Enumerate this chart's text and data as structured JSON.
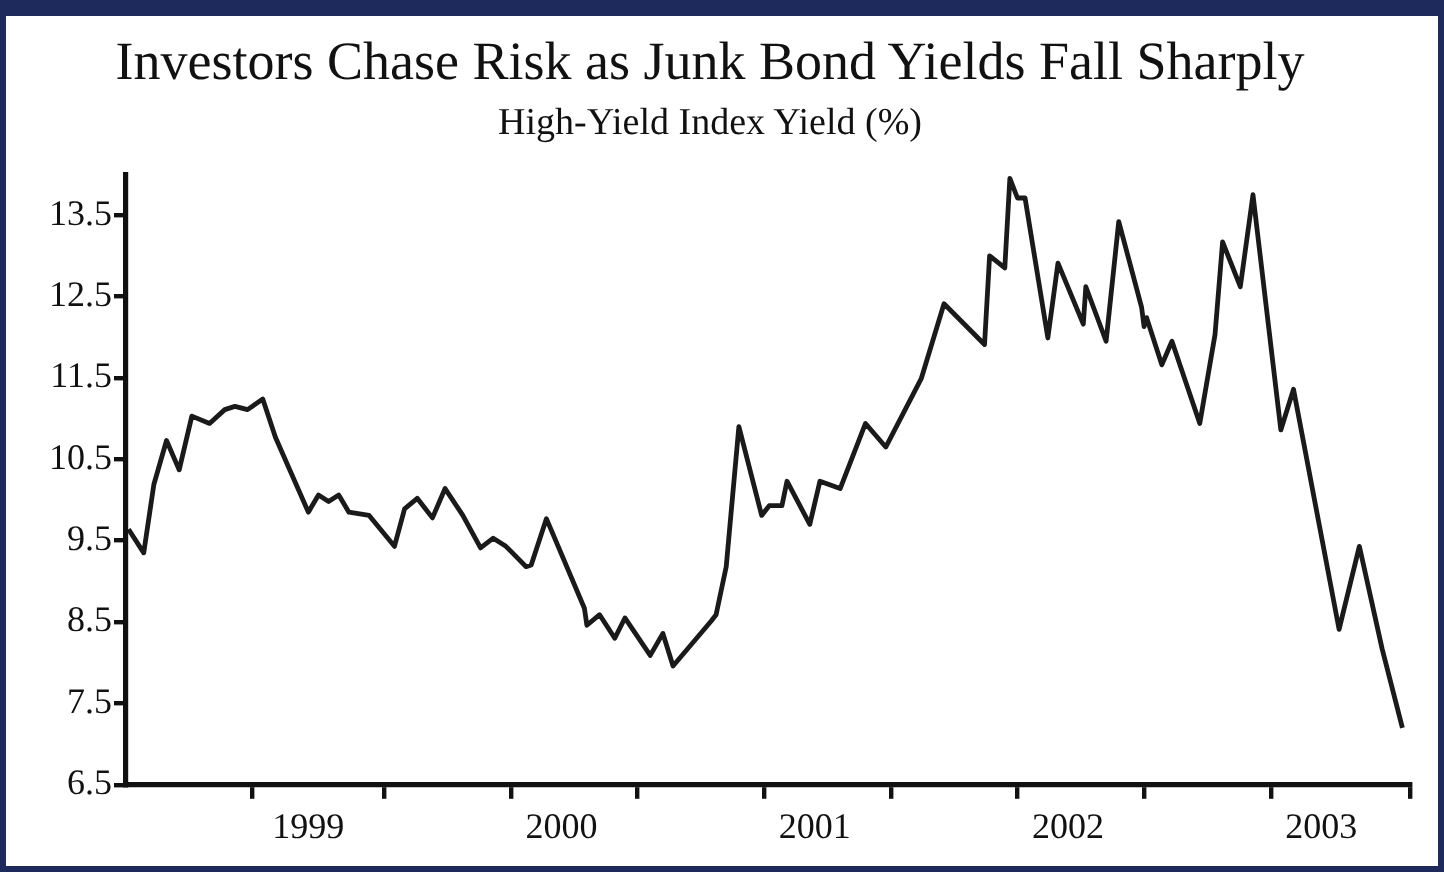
{
  "chart_data": {
    "type": "line",
    "title": "Investors Chase Risk as Junk Bond Yields Fall Sharply",
    "subtitle": "High-Yield Index Yield (%)",
    "series": [
      {
        "color": "#1a1a1a",
        "x": [
          1998.29,
          1998.35,
          1998.39,
          1998.44,
          1998.49,
          1998.54,
          1998.61,
          1998.67,
          1998.71,
          1998.76,
          1998.82,
          1998.87,
          1999.0,
          1999.04,
          1999.08,
          1999.12,
          1999.16,
          1999.24,
          1999.34,
          1999.38,
          1999.43,
          1999.49,
          1999.54,
          1999.61,
          1999.68,
          1999.73,
          1999.78,
          1999.86,
          1999.88,
          1999.94,
          2000.09,
          2000.1,
          2000.15,
          2000.21,
          2000.25,
          2000.35,
          2000.4,
          2000.44,
          2000.59,
          2000.61,
          2000.65,
          2000.7,
          2000.79,
          2000.82,
          2000.87,
          2000.89,
          2000.98,
          2001.02,
          2001.1,
          2001.2,
          2001.28,
          2001.42,
          2001.51,
          2001.67,
          2001.69,
          2001.75,
          2001.77,
          2001.8,
          2001.83,
          2001.92,
          2001.96,
          2002.06,
          2002.07,
          2002.15,
          2002.2,
          2002.29,
          2002.3,
          2002.31,
          2002.37,
          2002.41,
          2002.52,
          2002.58,
          2002.61,
          2002.68,
          2002.73,
          2002.84,
          2002.89,
          2003.07,
          2003.15,
          2003.24,
          2003.32
        ],
        "values": [
          9.64,
          9.35,
          10.19,
          10.73,
          10.37,
          11.03,
          10.94,
          11.11,
          11.15,
          11.11,
          11.24,
          10.77,
          9.85,
          10.06,
          9.98,
          10.06,
          9.85,
          9.81,
          9.43,
          9.89,
          10.02,
          9.78,
          10.14,
          9.81,
          9.41,
          9.53,
          9.43,
          9.18,
          9.2,
          9.77,
          8.67,
          8.46,
          8.59,
          8.3,
          8.55,
          8.09,
          8.36,
          7.96,
          8.51,
          8.59,
          9.18,
          10.9,
          9.81,
          9.93,
          9.93,
          10.23,
          9.7,
          10.23,
          10.14,
          10.94,
          10.65,
          11.49,
          12.41,
          11.91,
          13.0,
          12.85,
          13.95,
          13.71,
          13.71,
          11.99,
          12.91,
          12.16,
          12.62,
          11.95,
          13.42,
          12.37,
          12.13,
          12.24,
          11.66,
          11.95,
          10.94,
          12.03,
          13.17,
          12.62,
          13.75,
          10.86,
          11.36,
          8.41,
          9.43,
          8.17,
          7.2
        ]
      }
    ],
    "xlim": [
      1998.28,
      2003.35
    ],
    "xticks": [
      {
        "value": 1998.78,
        "label": null
      },
      1999,
      {
        "value": 1999.3,
        "label": null
      },
      {
        "value": 1999.8,
        "label": null
      },
      2000,
      {
        "value": 2000.3,
        "label": null
      },
      {
        "value": 2000.8,
        "label": null
      },
      2001,
      {
        "value": 2001.3,
        "label": null
      },
      {
        "value": 2001.8,
        "label": null
      },
      2002,
      {
        "value": 2002.3,
        "label": null
      },
      {
        "value": 2002.8,
        "label": null
      },
      2003,
      {
        "value": 2003.35,
        "label": null
      }
    ],
    "ylim": [
      6.5,
      14.0
    ],
    "yticks": [
      6.5,
      7.5,
      8.5,
      9.5,
      10.5,
      11.5,
      12.5,
      13.5
    ],
    "grid": false,
    "legend": false,
    "marker": "none",
    "line_style": "solid"
  }
}
